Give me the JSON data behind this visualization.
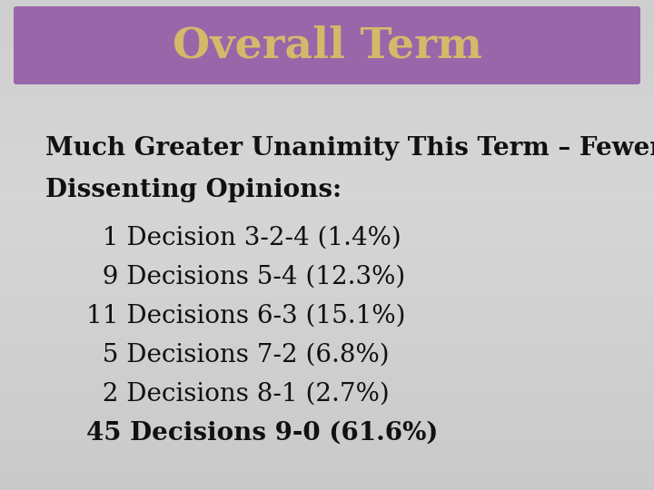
{
  "title": "Overall Term",
  "title_bg_color": "#9966AA",
  "title_text_color": "#D4B96A",
  "header_line1": "Much Greater Unanimity This Term – Fewer",
  "header_line2": "Dissenting Opinions:",
  "bullet_lines": [
    "  1 Decision 3-2-4 (1.4%)",
    "  9 Decisions 5-4 (12.3%)",
    "11 Decisions 6-3 (15.1%)",
    "  5 Decisions 7-2 (6.8%)",
    "  2 Decisions 8-1 (2.7%)",
    "45 Decisions 9-0 (61.6%)"
  ],
  "body_text_color": "#111111",
  "font_size_title": 34,
  "font_size_header": 20,
  "font_size_bullet": 20
}
